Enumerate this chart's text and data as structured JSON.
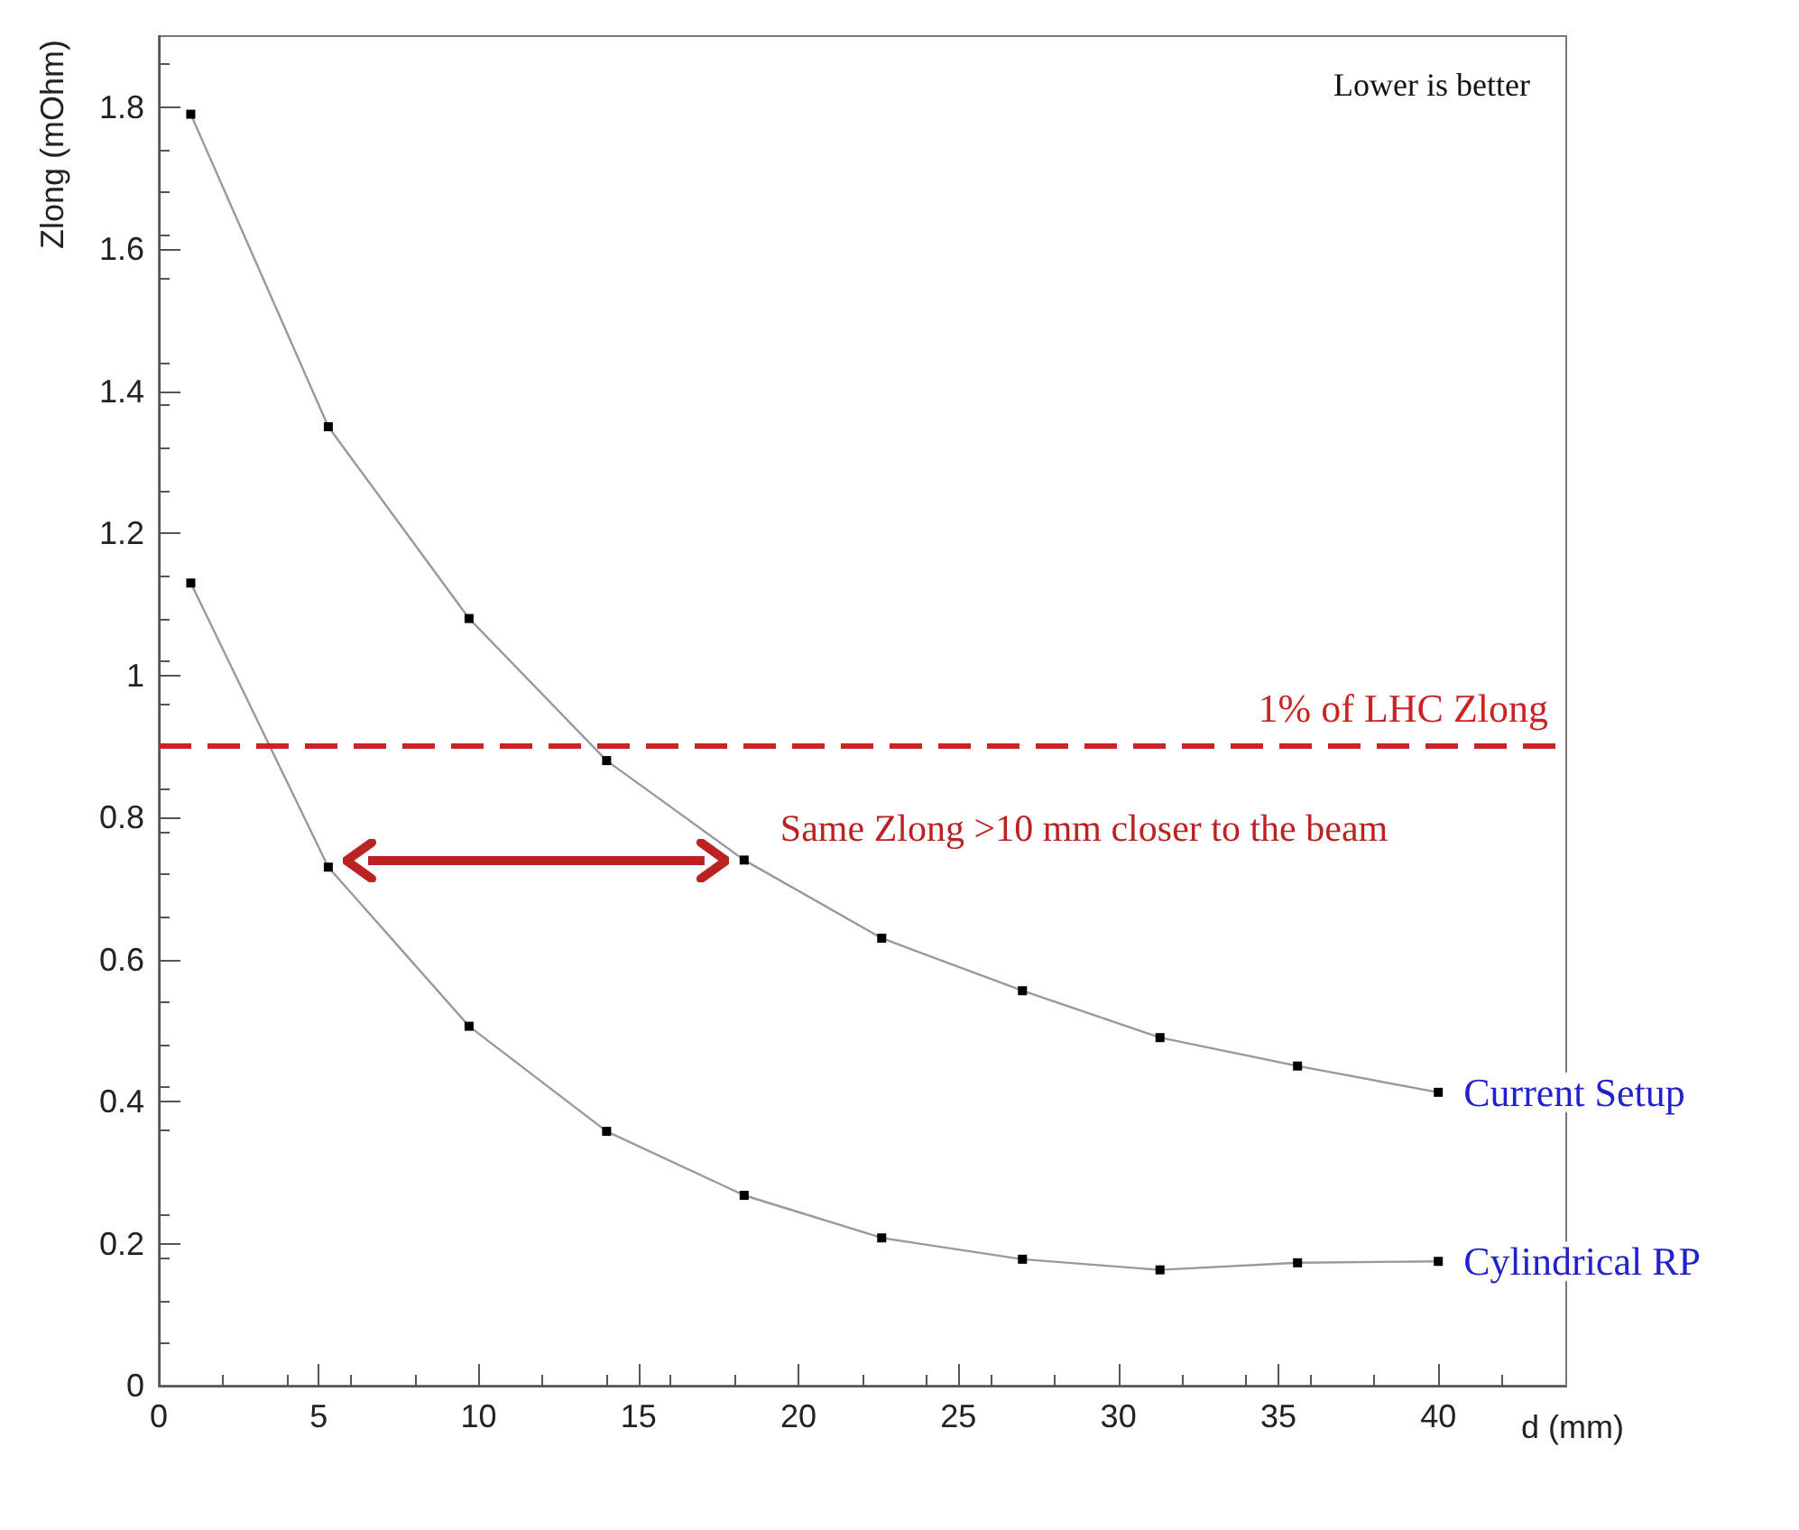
{
  "chart_data": {
    "type": "line",
    "xlabel": "d (mm)",
    "ylabel": "Zlong (mOhm)",
    "x": [
      1,
      5.3,
      9.7,
      14,
      18.3,
      22.6,
      27,
      31.3,
      35.6,
      40
    ],
    "series": [
      {
        "name": "Current Setup",
        "color": "#999999",
        "values": [
          1.79,
          1.35,
          1.08,
          0.88,
          0.74,
          0.63,
          0.556,
          0.49,
          0.45,
          0.413
        ]
      },
      {
        "name": "Cylindrical RP",
        "color": "#999999",
        "values": [
          1.13,
          0.73,
          0.506,
          0.358,
          0.268,
          0.208,
          0.178,
          0.163,
          0.173,
          0.175
        ]
      }
    ],
    "xlim": [
      0,
      44
    ],
    "xticks": [
      0,
      5,
      10,
      15,
      20,
      25,
      30,
      35,
      40
    ],
    "ylim": [
      0,
      1.9
    ],
    "yticks": [
      0,
      0.2,
      0.4,
      0.6,
      0.8,
      1,
      1.2,
      1.4,
      1.6,
      1.8
    ],
    "ref_lines": [
      {
        "axis": "y",
        "value": 0.9,
        "label": "1% of LHC Zlong",
        "color": "#cc2222",
        "line_style": "dashed"
      }
    ],
    "annotations": [
      "Lower is better",
      {
        "text": "Same Zlong >10 mm closer to the beam",
        "x": 18.3,
        "y": 0.74
      }
    ],
    "marker": "square",
    "line_style": "solid",
    "grid": false,
    "legend": false
  }
}
